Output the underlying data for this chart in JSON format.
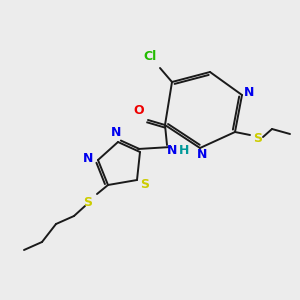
{
  "bg_color": "#ececec",
  "bond_color": "#1a1a1a",
  "atom_colors": {
    "N": "#0000ee",
    "O": "#ee0000",
    "S": "#cccc00",
    "Cl": "#22bb00",
    "H": "#009999",
    "C": "#1a1a1a"
  },
  "figsize": [
    3.0,
    3.0
  ],
  "dpi": 100
}
